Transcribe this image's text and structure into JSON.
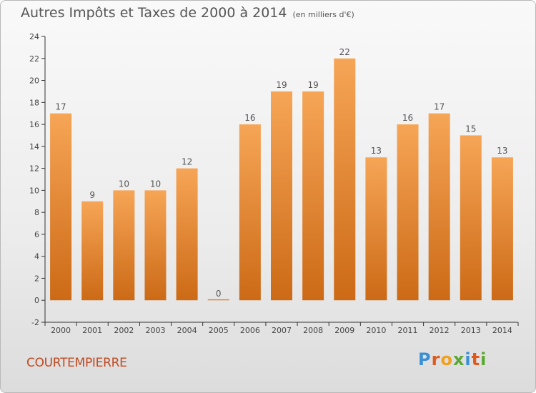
{
  "header": {
    "title": "Autres Impôts et Taxes de 2000 à 2014",
    "unit": "(en milliers d'€)"
  },
  "footer": {
    "commune": "COURTEMPIERRE",
    "logo_letters": [
      "P",
      "r",
      "o",
      "x",
      "i",
      "t",
      "i"
    ]
  },
  "colors": {
    "bar_top": "#f6a556",
    "bar_bottom": "#cc6a16",
    "axis": "#333333",
    "grid": "#cccccc"
  },
  "chart_data": {
    "type": "bar",
    "categories": [
      "2000",
      "2001",
      "2002",
      "2003",
      "2004",
      "2005",
      "2006",
      "2007",
      "2008",
      "2009",
      "2010",
      "2011",
      "2012",
      "2013",
      "2014"
    ],
    "values": [
      17,
      9,
      10,
      10,
      12,
      0,
      16,
      19,
      19,
      22,
      13,
      16,
      17,
      15,
      13
    ],
    "data_labels": [
      "17",
      "9",
      "10",
      "10",
      "12",
      "0",
      "16",
      "19",
      "19",
      "22",
      "13",
      "16",
      "17",
      "15",
      "13"
    ],
    "ylim": [
      -2,
      24
    ],
    "yticks": [
      -2,
      0,
      2,
      4,
      6,
      8,
      10,
      12,
      14,
      16,
      18,
      20,
      22,
      24
    ],
    "grid": false,
    "legend": "none"
  }
}
